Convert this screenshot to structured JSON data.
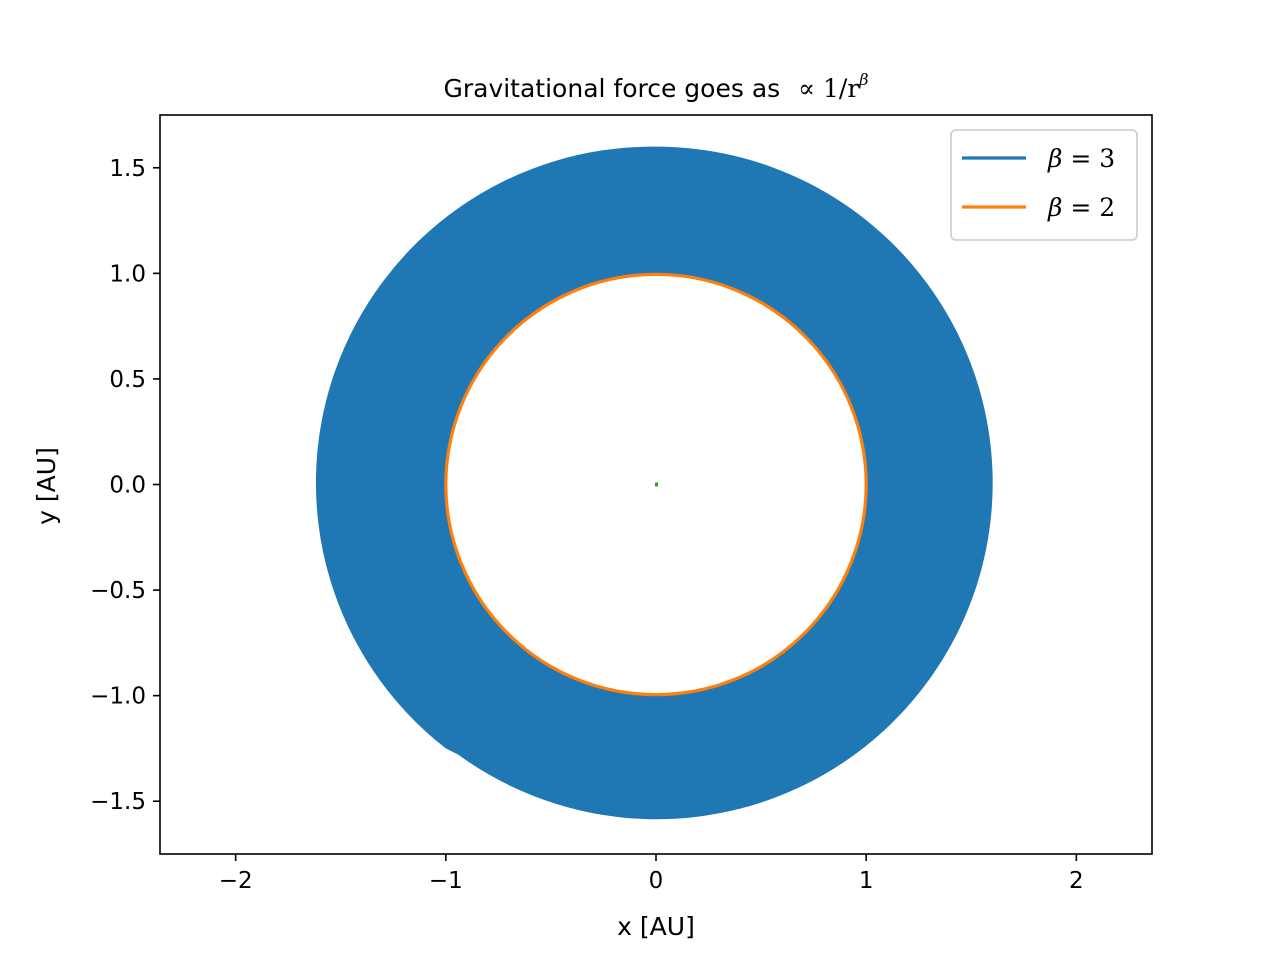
{
  "chart_data": {
    "type": "line",
    "title": "Gravitational force goes as",
    "title_math": "∝ 1/r",
    "title_math_sup": "β",
    "xlabel": "x [AU]",
    "ylabel": "y [AU]",
    "xlim": [
      -2.36,
      2.36
    ],
    "ylim": [
      -1.75,
      1.75
    ],
    "xticks": [
      -2,
      -1,
      0,
      1,
      2
    ],
    "xtick_labels": [
      "−2",
      "−1",
      "0",
      "1",
      "2"
    ],
    "yticks": [
      -1.5,
      -1.0,
      -0.5,
      0.0,
      0.5,
      1.0,
      1.5
    ],
    "ytick_labels": [
      "−1.5",
      "−1.0",
      "−0.5",
      "0.0",
      "0.5",
      "1.0",
      "1.5"
    ],
    "grid": false,
    "legend_position": "top-right",
    "series": [
      {
        "name_symbol": "β",
        "name_rest": " = 3",
        "color": "#1f77b4",
        "shape": "filled spiral band",
        "r_inner": 1.0,
        "r_outer": 1.6,
        "spiral_end_x": -1.0,
        "spiral_end_y": -1.25
      },
      {
        "name_symbol": "β",
        "name_rest": " = 2",
        "color": "#ff7f0e",
        "shape": "circle",
        "radius": 1.0
      }
    ],
    "center_marker": {
      "x": 0.0,
      "y": 0.0,
      "color": "#2ca02c"
    }
  }
}
